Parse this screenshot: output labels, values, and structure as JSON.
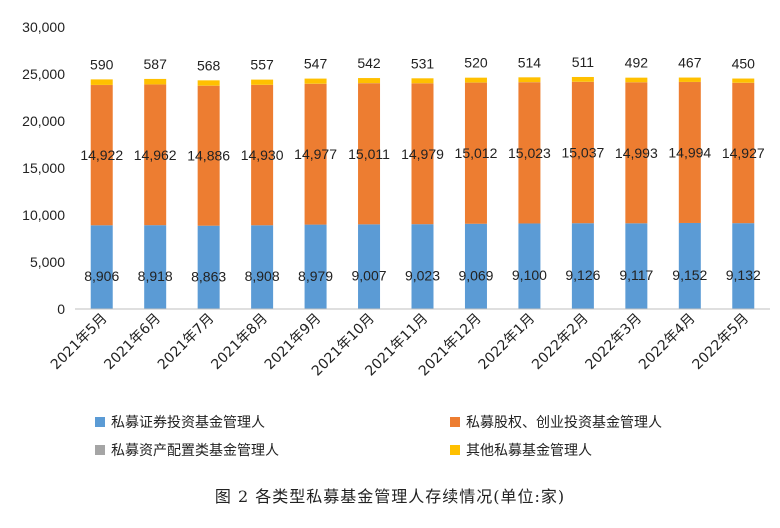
{
  "caption": "图 2 各类型私募基金管理人存续情况(单位:家)",
  "chart_data": {
    "type": "bar",
    "stacked": true,
    "categories": [
      "2021年5月",
      "2021年6月",
      "2021年7月",
      "2021年8月",
      "2021年9月",
      "2021年10月",
      "2021年11月",
      "2021年12月",
      "2022年1月",
      "2022年2月",
      "2022年3月",
      "2022年4月",
      "2022年5月"
    ],
    "series": [
      {
        "name": "私募证券投资基金管理人",
        "color": "#5B9BD5",
        "values": [
          8906,
          8918,
          8863,
          8908,
          8979,
          9007,
          9023,
          9069,
          9100,
          9126,
          9117,
          9152,
          9132
        ],
        "labels": [
          "8,906",
          "8,918",
          "8,863",
          "8,908",
          "8,979",
          "9,007",
          "9,023",
          "9,069",
          "9,100",
          "9,126",
          "9,117",
          "9,152",
          "9,132"
        ]
      },
      {
        "name": "私募股权、创业投资基金管理人",
        "color": "#ED7D31",
        "values": [
          14922,
          14962,
          14886,
          14930,
          14977,
          15011,
          14979,
          15012,
          15023,
          15037,
          14993,
          14994,
          14927
        ],
        "labels": [
          "14,922",
          "14,962",
          "14,886",
          "14,930",
          "14,977",
          "15,011",
          "14,979",
          "15,012",
          "15,023",
          "15,037",
          "14,993",
          "14,994",
          "14,927"
        ]
      },
      {
        "name": "私募资产配置类基金管理人",
        "color": "#A5A5A5",
        "values": [
          9,
          9,
          9,
          9,
          9,
          9,
          9,
          9,
          9,
          9,
          9,
          9,
          9
        ],
        "labels": []
      },
      {
        "name": "其他私募基金管理人",
        "color": "#FFC000",
        "values": [
          590,
          587,
          568,
          557,
          547,
          542,
          531,
          520,
          514,
          511,
          492,
          467,
          450
        ],
        "labels": [
          "590",
          "587",
          "568",
          "557",
          "547",
          "542",
          "531",
          "520",
          "514",
          "511",
          "492",
          "467",
          "450"
        ]
      }
    ],
    "ylim": [
      0,
      30000
    ],
    "yticks": [
      "0",
      "5,000",
      "10,000",
      "15,000",
      "20,000",
      "25,000",
      "30,000"
    ],
    "grid": false,
    "legend_position": "bottom"
  }
}
